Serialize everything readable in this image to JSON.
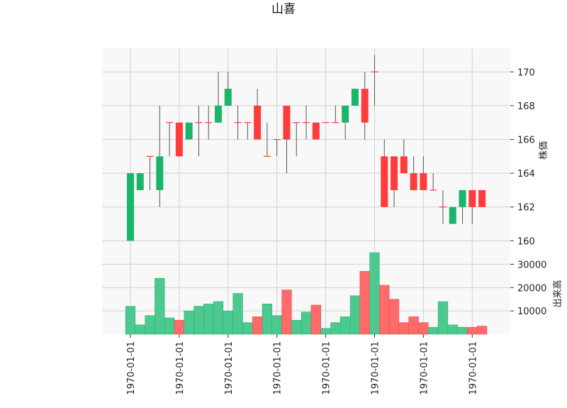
{
  "chart_data": {
    "type": "candlestick",
    "title": "山喜",
    "price_panel": {
      "ylabel": "株価",
      "yticks": [
        160,
        162,
        164,
        166,
        168,
        170
      ],
      "ylim": [
        159.3,
        171.4
      ],
      "grid": true
    },
    "volume_panel": {
      "ylabel": "出来高",
      "yticks": [
        10000,
        20000,
        30000
      ],
      "ylim": [
        0,
        35000
      ],
      "grid": true
    },
    "x_tick_labels": [
      "1970-01-01",
      "1970-01-01",
      "1970-01-01",
      "1970-01-01",
      "1970-01-01",
      "1970-01-01",
      "1970-01-01",
      "1970-01-01"
    ],
    "colors": {
      "up": "#19b56a",
      "down": "#ff3b3b",
      "wick": "#555555",
      "volume_up": "#4cc98e",
      "volume_down": "#ff6b6b",
      "panel_bg": "#f8f8f8",
      "grid": "#d0d0d0"
    },
    "candles": [
      {
        "open": 160,
        "high": 164,
        "low": 160,
        "close": 164,
        "volume": 12000
      },
      {
        "open": 163,
        "high": 164,
        "low": 163,
        "close": 164,
        "volume": 4000
      },
      {
        "open": 165,
        "high": 165,
        "low": 163,
        "close": 165,
        "volume": 8000
      },
      {
        "open": 163,
        "high": 168,
        "low": 162,
        "close": 165,
        "volume": 24000
      },
      {
        "open": 167,
        "high": 167,
        "low": 165,
        "close": 167,
        "volume": 7000
      },
      {
        "open": 167,
        "high": 167,
        "low": 165,
        "close": 165,
        "volume": 6000
      },
      {
        "open": 166,
        "high": 167,
        "low": 166,
        "close": 167,
        "volume": 10000
      },
      {
        "open": 167,
        "high": 168,
        "low": 165,
        "close": 167,
        "volume": 12000
      },
      {
        "open": 167,
        "high": 168,
        "low": 166,
        "close": 167,
        "volume": 13000
      },
      {
        "open": 167,
        "high": 170,
        "low": 167,
        "close": 168,
        "volume": 14000
      },
      {
        "open": 168,
        "high": 170,
        "low": 168,
        "close": 169,
        "volume": 10000
      },
      {
        "open": 167,
        "high": 168,
        "low": 166,
        "close": 167,
        "volume": 17500
      },
      {
        "open": 167,
        "high": 167,
        "low": 166,
        "close": 167,
        "volume": 5000
      },
      {
        "open": 168,
        "high": 169,
        "low": 166,
        "close": 166,
        "volume": 7500
      },
      {
        "open": 165,
        "high": 167,
        "low": 165,
        "close": 165,
        "volume": 13000
      },
      {
        "open": 166,
        "high": 166,
        "low": 165,
        "close": 166,
        "volume": 8000
      },
      {
        "open": 168,
        "high": 168,
        "low": 164,
        "close": 166,
        "volume": 19000
      },
      {
        "open": 167,
        "high": 167,
        "low": 165,
        "close": 167,
        "volume": 6000
      },
      {
        "open": 167,
        "high": 168,
        "low": 166,
        "close": 167,
        "volume": 9500
      },
      {
        "open": 167,
        "high": 167,
        "low": 166,
        "close": 166,
        "volume": 12500
      },
      {
        "open": 167,
        "high": 167,
        "low": 167,
        "close": 167,
        "volume": 2500
      },
      {
        "open": 167,
        "high": 168,
        "low": 167,
        "close": 167,
        "volume": 5000
      },
      {
        "open": 167,
        "high": 168,
        "low": 166,
        "close": 168,
        "volume": 7500
      },
      {
        "open": 168,
        "high": 169,
        "low": 168,
        "close": 169,
        "volume": 16500
      },
      {
        "open": 169,
        "high": 170,
        "low": 166,
        "close": 167,
        "volume": 27000
      },
      {
        "open": 170,
        "high": 171,
        "low": 168,
        "close": 170,
        "volume": 36000
      },
      {
        "open": 165,
        "high": 166,
        "low": 162,
        "close": 162,
        "volume": 21000
      },
      {
        "open": 165,
        "high": 165,
        "low": 162,
        "close": 163,
        "volume": 15000
      },
      {
        "open": 165,
        "high": 166,
        "low": 164,
        "close": 164,
        "volume": 5000
      },
      {
        "open": 164,
        "high": 165,
        "low": 163,
        "close": 163,
        "volume": 7500
      },
      {
        "open": 164,
        "high": 165,
        "low": 163,
        "close": 163,
        "volume": 5000
      },
      {
        "open": 163,
        "high": 164,
        "low": 163,
        "close": 163,
        "volume": 3000
      },
      {
        "open": 162,
        "high": 163,
        "low": 161,
        "close": 162,
        "volume": 14000
      },
      {
        "open": 161,
        "high": 162,
        "low": 161,
        "close": 162,
        "volume": 4000
      },
      {
        "open": 162,
        "high": 163,
        "low": 161,
        "close": 163,
        "volume": 3000
      },
      {
        "open": 163,
        "high": 163,
        "low": 161,
        "close": 162,
        "volume": 3000
      },
      {
        "open": 163,
        "high": 163,
        "low": 162,
        "close": 162,
        "volume": 3500
      }
    ]
  }
}
